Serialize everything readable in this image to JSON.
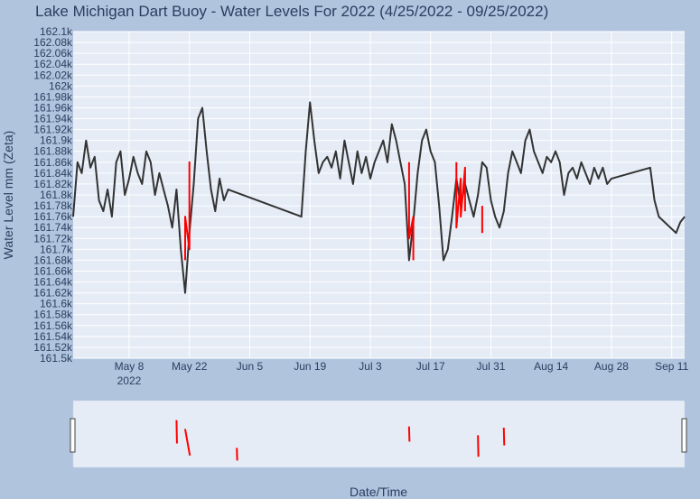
{
  "chart_data": {
    "type": "line",
    "title": "Lake Michigan Dart Buoy - Water Levels For 2022 (4/25/2022 - 09/25/2022)",
    "xlabel": "Date/Time",
    "ylabel": "Water Level mm (Zeta)",
    "xlim": [
      "2022-04-25",
      "2022-09-14"
    ],
    "ylim": [
      161500,
      162100
    ],
    "x_ticks": [
      {
        "date": "2022-05-08",
        "label": "May 8",
        "sublabel": "2022"
      },
      {
        "date": "2022-05-22",
        "label": "May 22"
      },
      {
        "date": "2022-06-05",
        "label": "Jun 5"
      },
      {
        "date": "2022-06-19",
        "label": "Jun 19"
      },
      {
        "date": "2022-07-03",
        "label": "Jul 3"
      },
      {
        "date": "2022-07-17",
        "label": "Jul 17"
      },
      {
        "date": "2022-07-31",
        "label": "Jul 31"
      },
      {
        "date": "2022-08-14",
        "label": "Aug 14"
      },
      {
        "date": "2022-08-28",
        "label": "Aug 28"
      },
      {
        "date": "2022-09-11",
        "label": "Sep 11"
      }
    ],
    "y_ticks": [
      "161.5k",
      "161.52k",
      "161.54k",
      "161.56k",
      "161.58k",
      "161.6k",
      "161.62k",
      "161.64k",
      "161.66k",
      "161.68k",
      "161.7k",
      "161.72k",
      "161.74k",
      "161.76k",
      "161.78k",
      "161.8k",
      "161.82k",
      "161.84k",
      "161.86k",
      "161.88k",
      "161.9k",
      "161.92k",
      "161.94k",
      "161.96k",
      "161.98k",
      "162k",
      "162.02k",
      "162.04k",
      "162.06k",
      "162.08k",
      "162.1k"
    ],
    "grid": true,
    "series": [
      {
        "color": "#333333",
        "points": [
          [
            "2022-04-25",
            161760
          ],
          [
            "2022-04-26",
            161860
          ],
          [
            "2022-04-27",
            161840
          ],
          [
            "2022-04-28",
            161900
          ],
          [
            "2022-04-29",
            161850
          ],
          [
            "2022-04-30",
            161870
          ],
          [
            "2022-05-01",
            161790
          ],
          [
            "2022-05-02",
            161770
          ],
          [
            "2022-05-03",
            161810
          ],
          [
            "2022-05-04",
            161760
          ],
          [
            "2022-05-05",
            161860
          ],
          [
            "2022-05-06",
            161880
          ],
          [
            "2022-05-07",
            161800
          ],
          [
            "2022-05-08",
            161830
          ],
          [
            "2022-05-09",
            161870
          ],
          [
            "2022-05-10",
            161840
          ],
          [
            "2022-05-11",
            161820
          ],
          [
            "2022-05-12",
            161880
          ],
          [
            "2022-05-13",
            161860
          ],
          [
            "2022-05-14",
            161800
          ],
          [
            "2022-05-15",
            161840
          ],
          [
            "2022-05-16",
            161810
          ],
          [
            "2022-05-17",
            161780
          ],
          [
            "2022-05-18",
            161740
          ],
          [
            "2022-05-19",
            161810
          ],
          [
            "2022-05-20",
            161700
          ],
          [
            "2022-05-21",
            161620
          ],
          [
            "2022-05-22",
            161730
          ],
          [
            "2022-05-23",
            161820
          ],
          [
            "2022-05-24",
            161940
          ],
          [
            "2022-05-25",
            161960
          ],
          [
            "2022-05-26",
            161880
          ],
          [
            "2022-05-27",
            161810
          ],
          [
            "2022-05-28",
            161770
          ],
          [
            "2022-05-29",
            161830
          ],
          [
            "2022-05-30",
            161790
          ],
          [
            "2022-05-31",
            161810
          ],
          [
            "2022-06-17",
            161760
          ],
          [
            "2022-06-18",
            161880
          ],
          [
            "2022-06-19",
            161970
          ],
          [
            "2022-06-20",
            161900
          ],
          [
            "2022-06-21",
            161840
          ],
          [
            "2022-06-22",
            161860
          ],
          [
            "2022-06-23",
            161870
          ],
          [
            "2022-06-24",
            161850
          ],
          [
            "2022-06-25",
            161880
          ],
          [
            "2022-06-26",
            161830
          ],
          [
            "2022-06-27",
            161900
          ],
          [
            "2022-06-28",
            161860
          ],
          [
            "2022-06-29",
            161820
          ],
          [
            "2022-06-30",
            161880
          ],
          [
            "2022-07-01",
            161840
          ],
          [
            "2022-07-02",
            161870
          ],
          [
            "2022-07-03",
            161830
          ],
          [
            "2022-07-04",
            161860
          ],
          [
            "2022-07-05",
            161880
          ],
          [
            "2022-07-06",
            161900
          ],
          [
            "2022-07-07",
            161860
          ],
          [
            "2022-07-08",
            161930
          ],
          [
            "2022-07-09",
            161900
          ],
          [
            "2022-07-10",
            161860
          ],
          [
            "2022-07-11",
            161820
          ],
          [
            "2022-07-12",
            161680
          ],
          [
            "2022-07-13",
            161750
          ],
          [
            "2022-07-14",
            161840
          ],
          [
            "2022-07-15",
            161900
          ],
          [
            "2022-07-16",
            161920
          ],
          [
            "2022-07-17",
            161880
          ],
          [
            "2022-07-18",
            161860
          ],
          [
            "2022-07-19",
            161780
          ],
          [
            "2022-07-20",
            161680
          ],
          [
            "2022-07-21",
            161700
          ],
          [
            "2022-07-22",
            161760
          ],
          [
            "2022-07-23",
            161830
          ],
          [
            "2022-07-24",
            161780
          ],
          [
            "2022-07-25",
            161820
          ],
          [
            "2022-07-26",
            161790
          ],
          [
            "2022-07-27",
            161760
          ],
          [
            "2022-07-28",
            161800
          ],
          [
            "2022-07-29",
            161860
          ],
          [
            "2022-07-30",
            161850
          ],
          [
            "2022-07-31",
            161790
          ],
          [
            "2022-08-01",
            161760
          ],
          [
            "2022-08-02",
            161740
          ],
          [
            "2022-08-03",
            161770
          ],
          [
            "2022-08-04",
            161840
          ],
          [
            "2022-08-05",
            161880
          ],
          [
            "2022-08-06",
            161860
          ],
          [
            "2022-08-07",
            161840
          ],
          [
            "2022-08-08",
            161900
          ],
          [
            "2022-08-09",
            161920
          ],
          [
            "2022-08-10",
            161880
          ],
          [
            "2022-08-11",
            161860
          ],
          [
            "2022-08-12",
            161840
          ],
          [
            "2022-08-13",
            161870
          ],
          [
            "2022-08-14",
            161860
          ],
          [
            "2022-08-15",
            161880
          ],
          [
            "2022-08-16",
            161860
          ],
          [
            "2022-08-17",
            161800
          ],
          [
            "2022-08-18",
            161840
          ],
          [
            "2022-08-19",
            161850
          ],
          [
            "2022-08-20",
            161830
          ],
          [
            "2022-08-21",
            161860
          ],
          [
            "2022-08-22",
            161840
          ],
          [
            "2022-08-23",
            161820
          ],
          [
            "2022-08-24",
            161850
          ],
          [
            "2022-08-25",
            161830
          ],
          [
            "2022-08-26",
            161850
          ],
          [
            "2022-08-27",
            161820
          ],
          [
            "2022-08-28",
            161830
          ],
          [
            "2022-09-06",
            161850
          ],
          [
            "2022-09-07",
            161790
          ],
          [
            "2022-09-08",
            161760
          ],
          [
            "2022-09-12",
            161730
          ],
          [
            "2022-09-13",
            161750
          ],
          [
            "2022-09-14",
            161760
          ]
        ]
      },
      {
        "color": "#ff0000",
        "points": [
          [
            "2022-05-21",
            161680
          ],
          [
            "2022-05-21",
            161760
          ],
          [
            "2022-05-22",
            161700
          ],
          [
            "2022-05-22",
            161860
          ],
          [
            "2022-05-22",
            161780
          ]
        ]
      },
      {
        "color": "#ff0000",
        "points": [
          [
            "2022-07-12",
            161860
          ],
          [
            "2022-07-12",
            161720
          ],
          [
            "2022-07-13",
            161760
          ],
          [
            "2022-07-13",
            161680
          ]
        ]
      },
      {
        "color": "#ff0000",
        "points": [
          [
            "2022-07-23",
            161860
          ],
          [
            "2022-07-23",
            161740
          ],
          [
            "2022-07-24",
            161830
          ],
          [
            "2022-07-24",
            161760
          ],
          [
            "2022-07-25",
            161850
          ],
          [
            "2022-07-25",
            161770
          ]
        ]
      },
      {
        "color": "#ff0000",
        "points": [
          [
            "2022-07-29",
            161780
          ],
          [
            "2022-07-29",
            161730
          ]
        ]
      }
    ],
    "rangeslider": {
      "segments": [
        {
          "x": [
            "2022-05-19",
            "2022-05-19"
          ],
          "y": [
            0.72,
            0.35
          ]
        },
        {
          "x": [
            "2022-05-21",
            "2022-05-22"
          ],
          "y": [
            0.58,
            0.16
          ]
        },
        {
          "x": [
            "2022-06-02",
            "2022-06-02"
          ],
          "y": [
            0.28,
            0.08
          ]
        },
        {
          "x": [
            "2022-07-12",
            "2022-07-12"
          ],
          "y": [
            0.62,
            0.38
          ]
        },
        {
          "x": [
            "2022-07-28",
            "2022-07-28"
          ],
          "y": [
            0.48,
            0.14
          ]
        },
        {
          "x": [
            "2022-08-03",
            "2022-08-03"
          ],
          "y": [
            0.6,
            0.32
          ]
        }
      ]
    }
  }
}
